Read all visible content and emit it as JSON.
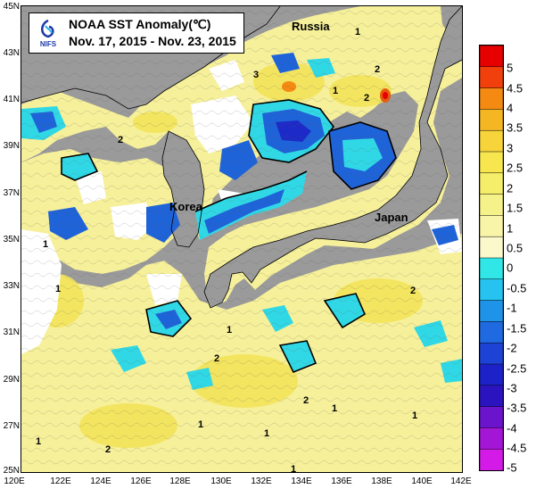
{
  "title": {
    "line1": "NOAA SST Anomaly(℃)",
    "line2": "Nov. 17, 2015 - Nov. 23, 2015",
    "logo_text": "NIFS"
  },
  "places": [
    {
      "key": "russia",
      "label": "Russia"
    },
    {
      "key": "korea",
      "label": "Korea"
    },
    {
      "key": "japan",
      "label": "Japan"
    }
  ],
  "lat_ticks": [
    "45N",
    "43N",
    "41N",
    "39N",
    "37N",
    "35N",
    "33N",
    "31N",
    "29N",
    "27N",
    "25N"
  ],
  "lon_ticks": [
    "120E",
    "122E",
    "124E",
    "126E",
    "128E",
    "130E",
    "132E",
    "134E",
    "136E",
    "138E",
    "140E",
    "142E"
  ],
  "colorbar": {
    "labels": [
      "5",
      "4.5",
      "4",
      "3.5",
      "3",
      "2.5",
      "2",
      "1.5",
      "1",
      "0.5",
      "0",
      "-0.5",
      "-1",
      "-1.5",
      "-2",
      "-2.5",
      "-3",
      "-3.5",
      "-4",
      "-4.5",
      "-5"
    ],
    "colors": [
      "#e60000",
      "#f2400c",
      "#f58a12",
      "#f5b623",
      "#f7d43a",
      "#f7e64d",
      "#f5ee6a",
      "#f6f28a",
      "#f8f5a8",
      "#fbf8cc",
      "#30e6e6",
      "#26c3f0",
      "#1f93e8",
      "#1f6ae0",
      "#1d43d6",
      "#1d22c8",
      "#2b14c0",
      "#6a14cc",
      "#a316d6",
      "#d31ae6"
    ]
  },
  "contour_labels": [
    "1",
    "2",
    "3",
    "2",
    "1",
    "2",
    "2",
    "1",
    "1",
    "1",
    "2",
    "1",
    "2",
    "1",
    "1",
    "2",
    "1",
    "1",
    "1"
  ],
  "map_colors": {
    "land": "#9a9a9a",
    "no_data": "#ffffff",
    "sea_warm": "#f6f09a",
    "sea_warmer": "#f3e35a",
    "anomaly_hot": "#e85a10",
    "cyan": "#30d8e6",
    "blue": "#1f63d8",
    "deep_blue": "#1d2ac8"
  }
}
